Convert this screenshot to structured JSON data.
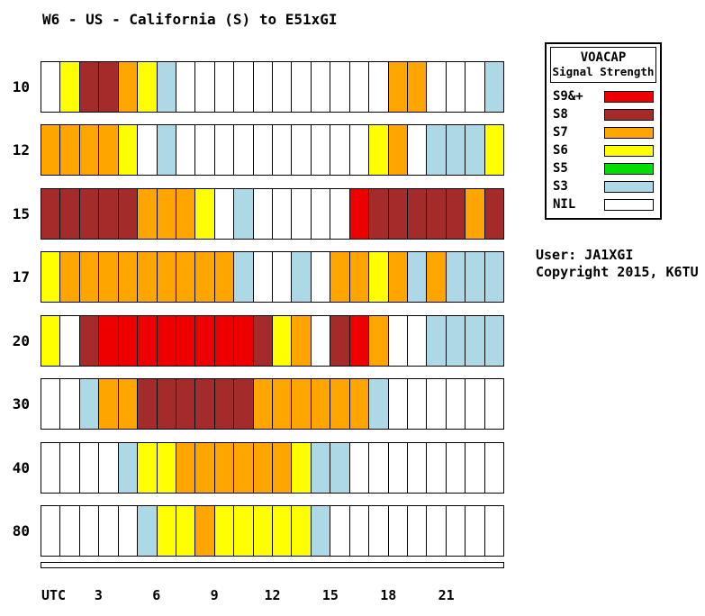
{
  "title": "W6 - US - California (S) to E51xGI",
  "user_line": "User: JA1XGI",
  "copyright_line": "Copyright 2015, K6TU",
  "legend": {
    "title1": "VOACAP",
    "title2": "Signal Strength",
    "items": [
      {
        "label": "S9&+",
        "level": "S9"
      },
      {
        "label": "S8",
        "level": "S8"
      },
      {
        "label": "S7",
        "level": "S7"
      },
      {
        "label": "S6",
        "level": "S6"
      },
      {
        "label": "S5",
        "level": "S5"
      },
      {
        "label": "S3",
        "level": "S3"
      },
      {
        "label": "NIL",
        "level": "NIL"
      }
    ]
  },
  "palette": {
    "S9": "#ee0000",
    "S8": "#a52a2a",
    "S7": "#ffa500",
    "S6": "#ffff00",
    "S5": "#00dd00",
    "S3": "#add8e6",
    "NIL": "#ffffff"
  },
  "x_axis": {
    "label": "UTC",
    "ticks": [
      {
        "label": "3",
        "hour": 3
      },
      {
        "label": "6",
        "hour": 6
      },
      {
        "label": "9",
        "hour": 9
      },
      {
        "label": "12",
        "hour": 12
      },
      {
        "label": "15",
        "hour": 15
      },
      {
        "label": "18",
        "hour": 18
      },
      {
        "label": "21",
        "hour": 21
      }
    ]
  },
  "chart_data": {
    "type": "heatmap",
    "title": "W6 - US - California (S) to E51xGI",
    "x_unit": "UTC hour",
    "x_range": [
      0,
      24
    ],
    "x_tick_labels": [
      "3",
      "6",
      "9",
      "12",
      "15",
      "18",
      "21"
    ],
    "y_bands_meters": [
      "10",
      "12",
      "15",
      "17",
      "20",
      "30",
      "40",
      "80"
    ],
    "legend_levels": [
      "S9&+",
      "S8",
      "S7",
      "S6",
      "S5",
      "S3",
      "NIL"
    ],
    "rows": [
      {
        "band": "10",
        "levels": [
          "NIL",
          "S6",
          "S8",
          "S8",
          "S7",
          "S6",
          "S3",
          "NIL",
          "NIL",
          "NIL",
          "NIL",
          "NIL",
          "NIL",
          "NIL",
          "NIL",
          "NIL",
          "NIL",
          "NIL",
          "S7",
          "S7",
          "NIL",
          "NIL",
          "NIL",
          "S3"
        ]
      },
      {
        "band": "12",
        "levels": [
          "S7",
          "S7",
          "S7",
          "S7",
          "S6",
          "NIL",
          "S3",
          "NIL",
          "NIL",
          "NIL",
          "NIL",
          "NIL",
          "NIL",
          "NIL",
          "NIL",
          "NIL",
          "NIL",
          "S6",
          "S7",
          "NIL",
          "S3",
          "S3",
          "S3",
          "S6"
        ]
      },
      {
        "band": "15",
        "levels": [
          "S8",
          "S8",
          "S8",
          "S8",
          "S8",
          "S7",
          "S7",
          "S7",
          "S6",
          "NIL",
          "S3",
          "NIL",
          "NIL",
          "NIL",
          "NIL",
          "NIL",
          "S9",
          "S8",
          "S8",
          "S8",
          "S8",
          "S8",
          "S7",
          "S8"
        ]
      },
      {
        "band": "17",
        "levels": [
          "S6",
          "S7",
          "S7",
          "S7",
          "S7",
          "S7",
          "S7",
          "S7",
          "S7",
          "S7",
          "S3",
          "NIL",
          "NIL",
          "S3",
          "NIL",
          "S7",
          "S7",
          "S6",
          "S7",
          "S3",
          "S7",
          "S3",
          "S3",
          "S3"
        ]
      },
      {
        "band": "20",
        "levels": [
          "S6",
          "NIL",
          "S8",
          "S9",
          "S9",
          "S9",
          "S9",
          "S9",
          "S9",
          "S9",
          "S9",
          "S8",
          "S6",
          "S7",
          "NIL",
          "S8",
          "S9",
          "S7",
          "NIL",
          "NIL",
          "S3",
          "S3",
          "S3",
          "S3"
        ]
      },
      {
        "band": "30",
        "levels": [
          "NIL",
          "NIL",
          "S3",
          "S7",
          "S7",
          "S8",
          "S8",
          "S8",
          "S8",
          "S8",
          "S8",
          "S7",
          "S7",
          "S7",
          "S7",
          "S7",
          "S7",
          "S3",
          "NIL",
          "NIL",
          "NIL",
          "NIL",
          "NIL",
          "NIL"
        ]
      },
      {
        "band": "40",
        "levels": [
          "NIL",
          "NIL",
          "NIL",
          "NIL",
          "S3",
          "S6",
          "S6",
          "S7",
          "S7",
          "S7",
          "S7",
          "S7",
          "S7",
          "S6",
          "S3",
          "S3",
          "NIL",
          "NIL",
          "NIL",
          "NIL",
          "NIL",
          "NIL",
          "NIL",
          "NIL"
        ]
      },
      {
        "band": "80",
        "levels": [
          "NIL",
          "NIL",
          "NIL",
          "NIL",
          "NIL",
          "S3",
          "S6",
          "S6",
          "S7",
          "S6",
          "S6",
          "S6",
          "S6",
          "S6",
          "S3",
          "NIL",
          "NIL",
          "NIL",
          "NIL",
          "NIL",
          "NIL",
          "NIL",
          "NIL",
          "NIL"
        ]
      }
    ]
  }
}
